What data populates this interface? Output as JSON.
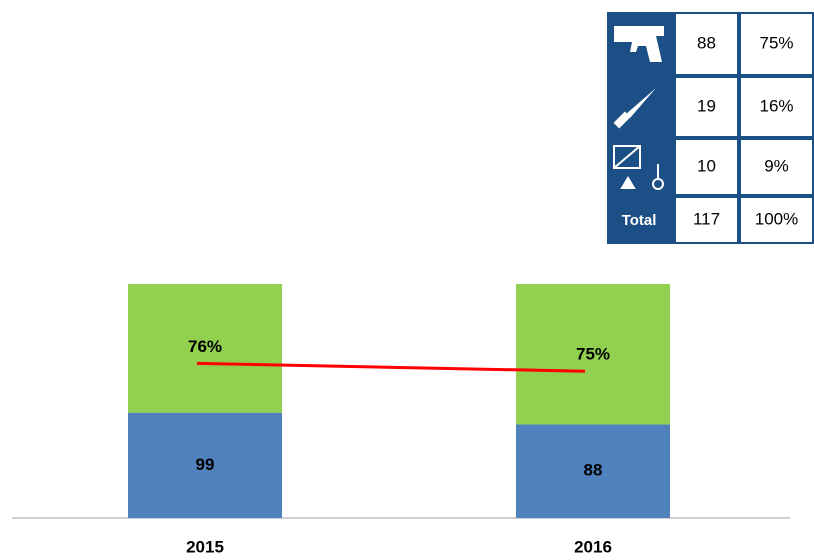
{
  "chart_data": {
    "type": "bar",
    "stacked": true,
    "categories": [
      "2015",
      "2016"
    ],
    "series": [
      {
        "color": "#4f81bd",
        "values": [
          99,
          88
        ]
      },
      {
        "color": "#92d050",
        "values": [
          121,
          132
        ]
      },
      {
        "type": "line",
        "axis": "y2",
        "color": "#ff0000",
        "values": [
          76,
          75
        ],
        "value_labels": [
          "76%",
          "75%"
        ]
      }
    ],
    "ylim": [
      0,
      220
    ],
    "y2lim": [
      56.5,
      86
    ]
  },
  "table": {
    "rows": [
      [
        88,
        "75%"
      ],
      [
        19,
        "16%"
      ],
      [
        10,
        "9%"
      ]
    ],
    "total": {
      "label": "Total",
      "values": [
        117,
        "100%"
      ]
    }
  }
}
